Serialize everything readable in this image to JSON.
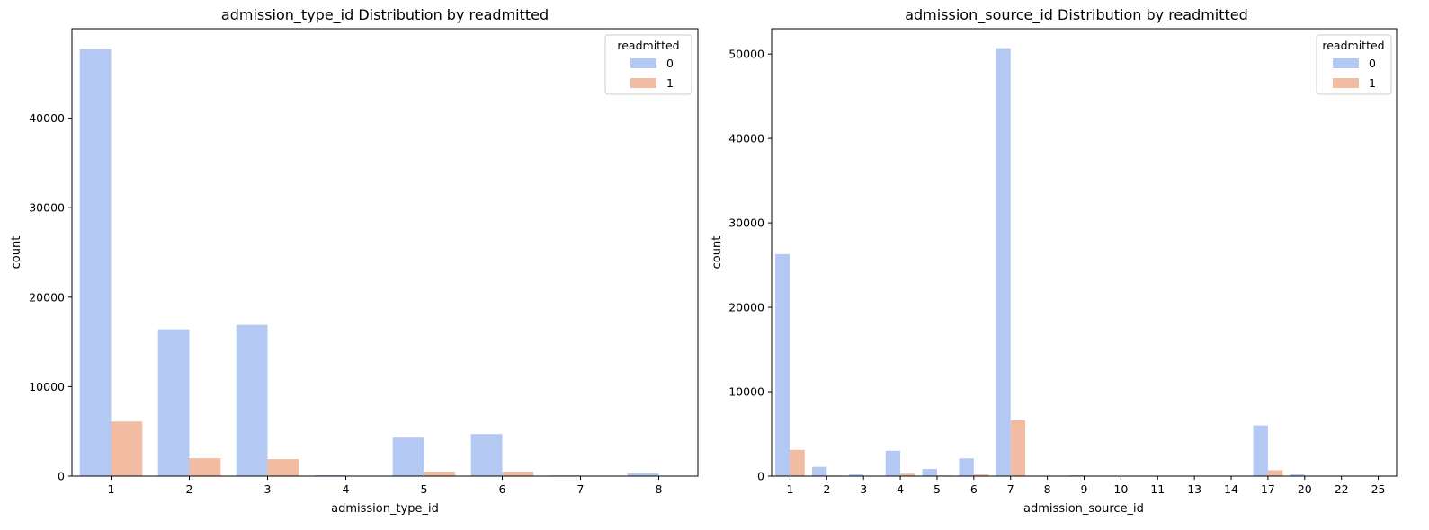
{
  "chart_data": [
    {
      "type": "bar",
      "title": "admission_type_id Distribution by readmitted",
      "xlabel": "admission_type_id",
      "ylabel": "count",
      "categories": [
        "1",
        "2",
        "3",
        "4",
        "5",
        "6",
        "7",
        "8"
      ],
      "series": [
        {
          "name": "0",
          "values": [
            47700,
            16400,
            16900,
            100,
            4300,
            4700,
            80,
            300
          ]
        },
        {
          "name": "1",
          "values": [
            6100,
            2000,
            1900,
            10,
            500,
            500,
            10,
            50
          ]
        }
      ],
      "ylim": [
        0,
        50000
      ],
      "yticks": [
        0,
        10000,
        20000,
        30000,
        40000
      ],
      "legend": {
        "title": "readmitted",
        "position": "top-right"
      },
      "grid": false,
      "colors": [
        "#b3c9f4",
        "#f2bca2"
      ]
    },
    {
      "type": "bar",
      "title": "admission_source_id Distribution by readmitted",
      "xlabel": "admission_source_id",
      "ylabel": "count",
      "categories": [
        "1",
        "2",
        "3",
        "4",
        "5",
        "6",
        "7",
        "8",
        "9",
        "10",
        "11",
        "13",
        "14",
        "17",
        "20",
        "22",
        "25"
      ],
      "series": [
        {
          "name": "0",
          "values": [
            26300,
            1100,
            200,
            3000,
            850,
            2100,
            50700,
            20,
            100,
            10,
            5,
            5,
            5,
            6000,
            200,
            10,
            5
          ]
        },
        {
          "name": "1",
          "values": [
            3100,
            80,
            40,
            300,
            80,
            200,
            6600,
            5,
            50,
            2,
            1,
            1,
            1,
            700,
            30,
            2,
            1
          ]
        }
      ],
      "ylim": [
        0,
        53000
      ],
      "yticks": [
        0,
        10000,
        20000,
        30000,
        40000,
        50000
      ],
      "legend": {
        "title": "readmitted",
        "position": "top-right"
      },
      "grid": false,
      "colors": [
        "#b3c9f4",
        "#f2bca2"
      ]
    }
  ]
}
